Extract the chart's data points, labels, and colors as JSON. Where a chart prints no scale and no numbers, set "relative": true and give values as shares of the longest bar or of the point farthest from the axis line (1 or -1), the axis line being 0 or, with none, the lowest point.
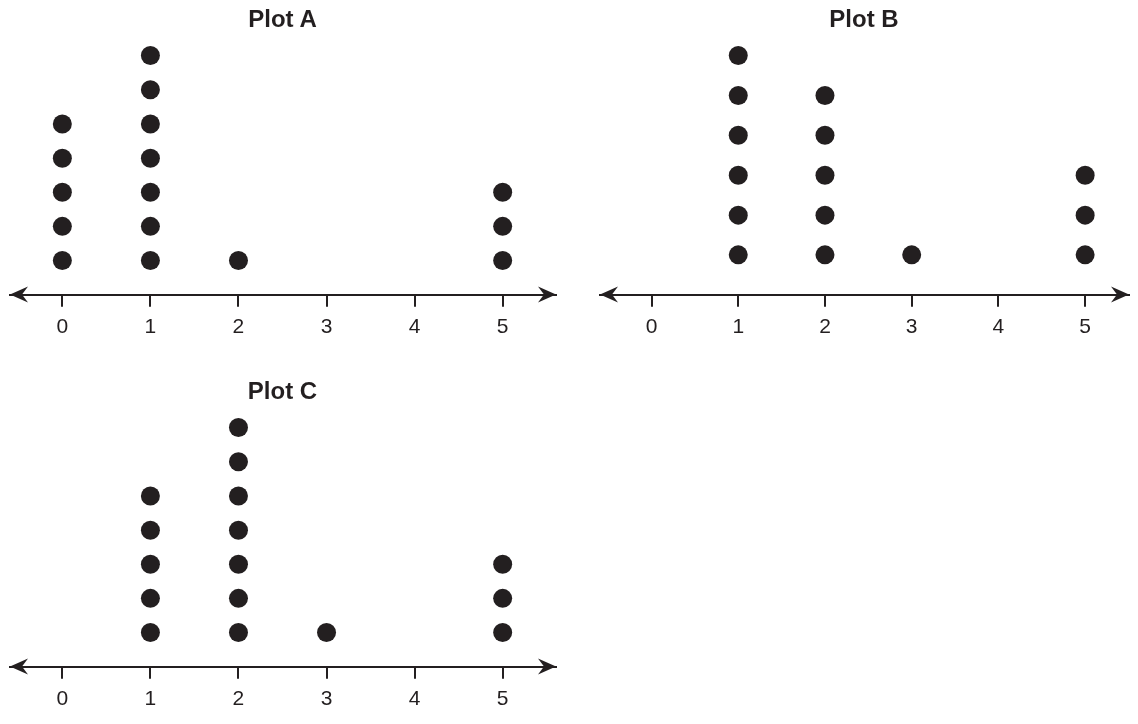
{
  "chart_data": [
    {
      "type": "scatter",
      "title": "Plot A",
      "relative": true,
      "x": [
        0,
        0,
        0,
        0,
        0,
        1,
        1,
        1,
        1,
        1,
        1,
        1,
        2,
        5,
        5,
        5
      ],
      "values": [
        0.143,
        0.286,
        0.429,
        0.571,
        0.714,
        0.143,
        0.286,
        0.429,
        0.571,
        0.714,
        0.857,
        1,
        0.143,
        0.143,
        0.286,
        0.429
      ],
      "color": "#231f20",
      "xlim": [
        -0.6,
        5.6
      ],
      "xticks": [
        0,
        1,
        2,
        3,
        4,
        5
      ],
      "tick_labels": "x",
      "marker": "circle",
      "grid": false,
      "legend": false
    },
    {
      "type": "scatter",
      "title": "Plot B",
      "relative": true,
      "x": [
        1,
        1,
        1,
        1,
        1,
        1,
        2,
        2,
        2,
        2,
        2,
        3,
        5,
        5,
        5
      ],
      "values": [
        0.167,
        0.333,
        0.5,
        0.667,
        0.833,
        1,
        0.167,
        0.333,
        0.5,
        0.667,
        0.833,
        0.167,
        0.167,
        0.333,
        0.5
      ],
      "color": "#231f20",
      "xlim": [
        -0.6,
        5.5
      ],
      "xticks": [
        0,
        1,
        2,
        3,
        4,
        5
      ],
      "tick_labels": "x",
      "marker": "circle",
      "grid": false,
      "legend": false
    },
    {
      "type": "scatter",
      "title": "Plot C",
      "relative": true,
      "x": [
        1,
        1,
        1,
        1,
        1,
        2,
        2,
        2,
        2,
        2,
        2,
        2,
        3,
        5,
        5,
        5
      ],
      "values": [
        0.143,
        0.286,
        0.429,
        0.571,
        0.714,
        0.143,
        0.286,
        0.429,
        0.571,
        0.714,
        0.857,
        1,
        0.143,
        0.143,
        0.286,
        0.429
      ],
      "color": "#231f20",
      "xlim": [
        -0.6,
        5.6
      ],
      "xticks": [
        0,
        1,
        2,
        3,
        4,
        5
      ],
      "tick_labels": "x",
      "marker": "circle",
      "grid": false,
      "legend": false
    }
  ]
}
